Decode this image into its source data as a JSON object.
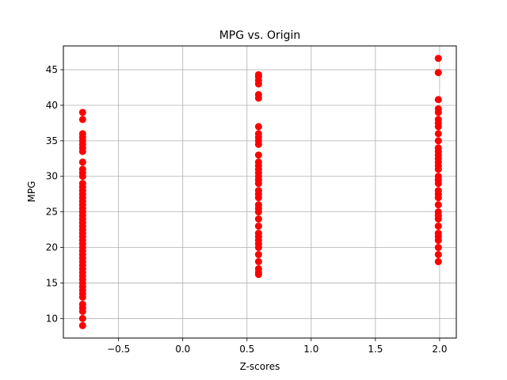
{
  "chart_data": {
    "type": "scatter",
    "title": "MPG vs. Origin",
    "xlabel": "Z-scores",
    "ylabel": "MPG",
    "xlim": [
      -0.93,
      2.13
    ],
    "ylim": [
      7.25,
      48.35
    ],
    "xticks": [
      -0.5,
      0.0,
      0.5,
      1.0,
      1.5,
      2.0
    ],
    "xtick_labels": [
      "−0.5",
      "0.0",
      "0.5",
      "1.0",
      "1.5",
      "2.0"
    ],
    "yticks": [
      10,
      15,
      20,
      25,
      30,
      35,
      40,
      45
    ],
    "ytick_labels": [
      "10",
      "15",
      "20",
      "25",
      "30",
      "35",
      "40",
      "45"
    ],
    "grid": true,
    "marker_color": "#ff0000",
    "series": [
      {
        "x": -0.78,
        "y": [
          9,
          10,
          11,
          11.5,
          12,
          13,
          13.5,
          14,
          14.5,
          15,
          15.5,
          16,
          16.5,
          17,
          17.5,
          18,
          18.5,
          19,
          19.5,
          20,
          20.5,
          21,
          21.5,
          22,
          22.5,
          23,
          23.5,
          24,
          24.5,
          25,
          25.5,
          26,
          26.5,
          27,
          27.5,
          28,
          28.5,
          29,
          30,
          30.5,
          31,
          32,
          33.5,
          34,
          34.5,
          35,
          35.5,
          36,
          38,
          39
        ]
      },
      {
        "x": 0.59,
        "y": [
          16.2,
          16.5,
          17,
          18,
          19,
          20,
          20.5,
          21,
          21.5,
          22,
          23,
          24,
          25,
          25.5,
          26,
          27,
          27.5,
          28,
          29,
          29.5,
          30,
          30.5,
          31,
          31.5,
          32,
          33,
          34.5,
          35,
          35.5,
          36,
          37,
          41,
          41.5,
          43,
          43.5,
          44,
          44.3
        ]
      },
      {
        "x": 1.99,
        "y": [
          18,
          19,
          20,
          21,
          21.5,
          22,
          23,
          24,
          24.5,
          25,
          26,
          27,
          27.5,
          28,
          29,
          29.5,
          30,
          31,
          31.5,
          32,
          32.5,
          33,
          33.5,
          34,
          35,
          36,
          37,
          37.5,
          38,
          39,
          39.5,
          40.8,
          44.6,
          46.6
        ]
      }
    ]
  }
}
